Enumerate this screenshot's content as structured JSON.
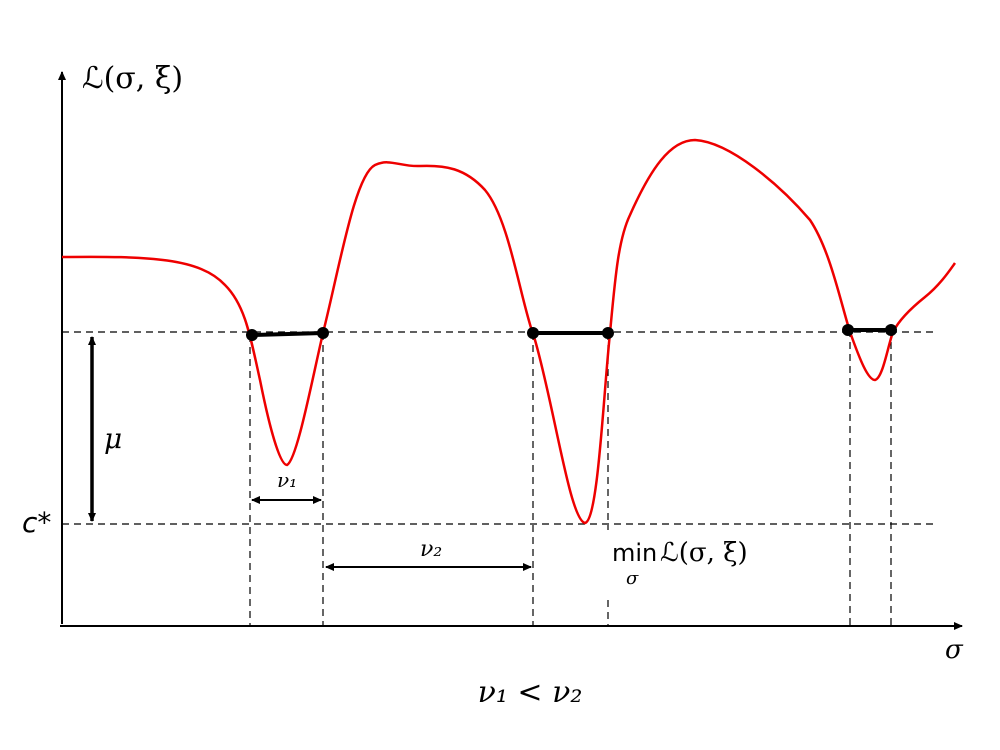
{
  "labels": {
    "y_axis": "ℒ(σ, ξ)",
    "x_axis": "σ",
    "mu": "μ",
    "c_star": "c*",
    "nu1": "ν₁",
    "nu2": "ν₂",
    "min_word": "min",
    "min_sub": "σ",
    "min_func": "ℒ(σ, ξ)",
    "caption": "ν₁ < ν₂"
  }
}
